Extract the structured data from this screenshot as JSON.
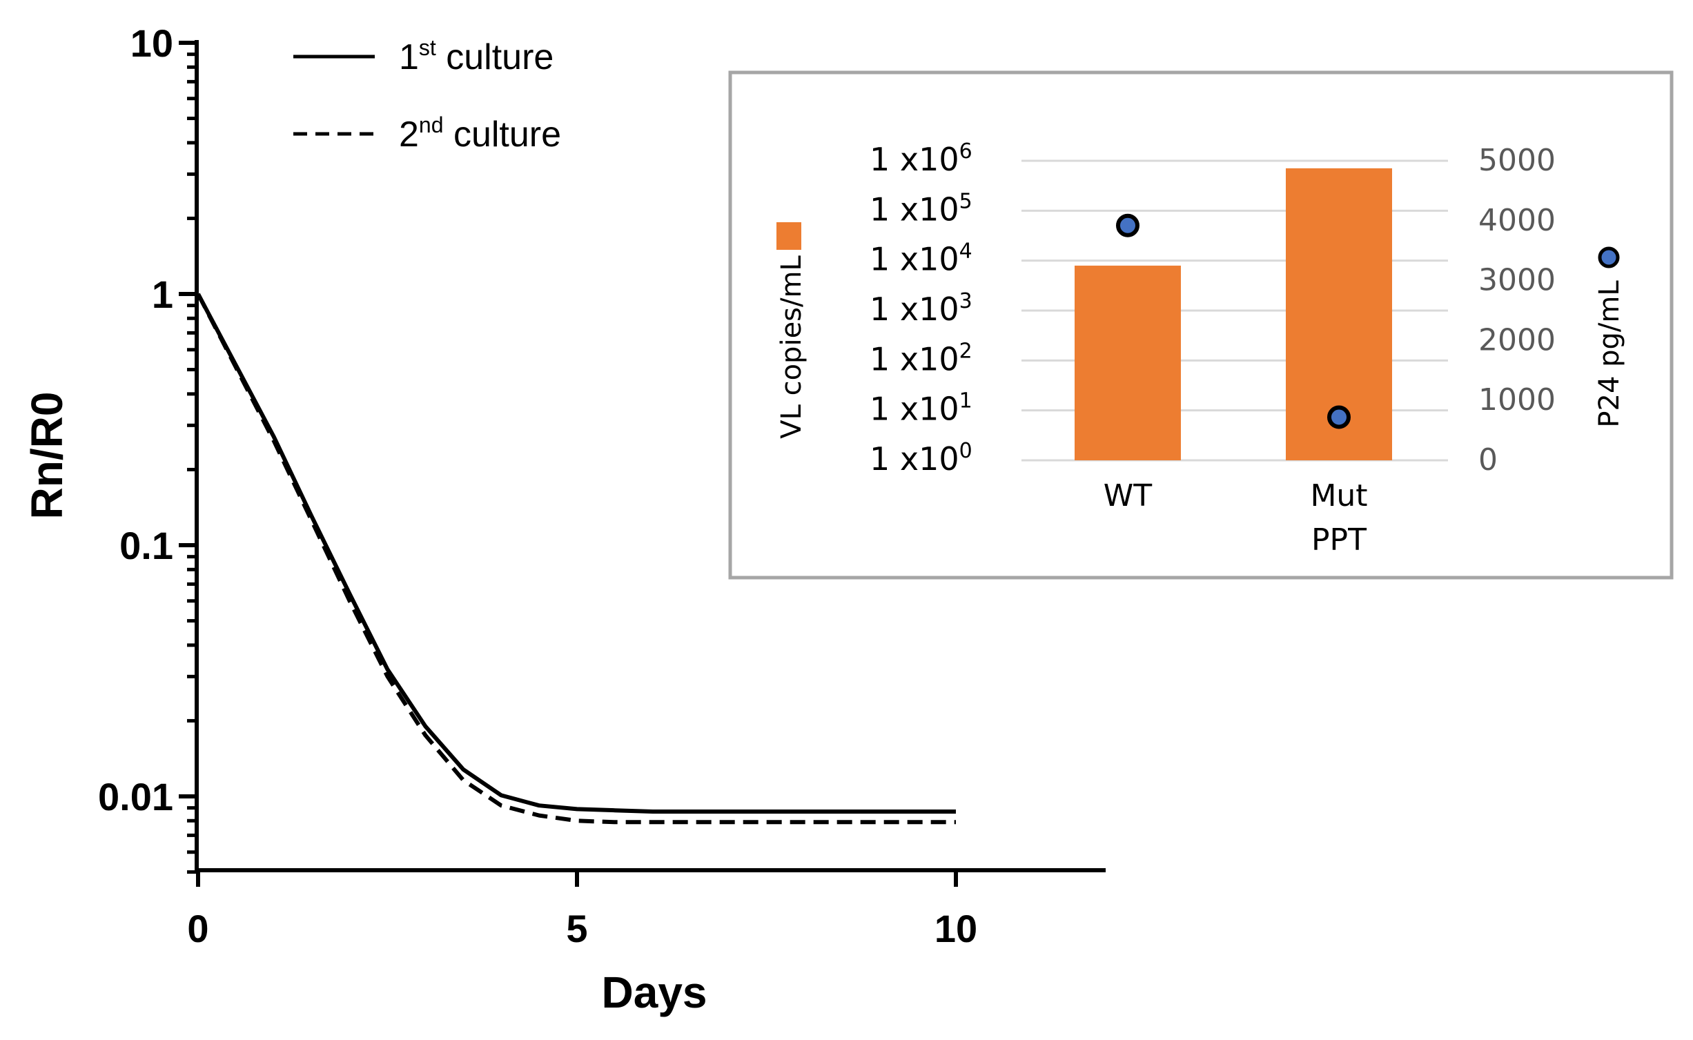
{
  "chart_data": [
    {
      "type": "line",
      "xlabel": "Days",
      "ylabel": "Rn/R0",
      "xlim": [
        0,
        12
      ],
      "ylim": [
        0.005,
        10
      ],
      "yscale": "log",
      "x_ticks": [
        {
          "value": 0,
          "label": "0"
        },
        {
          "value": 5,
          "label": "5"
        },
        {
          "value": 10,
          "label": "10"
        }
      ],
      "y_ticks": [
        {
          "value": 10,
          "label": "10"
        },
        {
          "value": 1,
          "label": "1"
        },
        {
          "value": 0.1,
          "label": "0.1"
        },
        {
          "value": 0.01,
          "label": "0.01"
        }
      ],
      "legend": [
        {
          "base": "1",
          "sup": "st",
          "rest": " culture",
          "style": "solid"
        },
        {
          "base": "2",
          "sup": "nd",
          "rest": " culture",
          "style": "dashed"
        }
      ],
      "legend_position": "top-left",
      "series": [
        {
          "name": "1st culture",
          "style": "solid",
          "x": [
            0,
            0.5,
            1,
            1.5,
            2,
            2.5,
            3,
            3.5,
            4,
            4.5,
            5,
            5.5,
            6,
            7,
            8,
            9,
            10
          ],
          "y": [
            1,
            0.52,
            0.27,
            0.13,
            0.064,
            0.032,
            0.019,
            0.0128,
            0.0101,
            0.0092,
            0.0089,
            0.0088,
            0.0087,
            0.0087,
            0.0087,
            0.0087,
            0.0087
          ]
        },
        {
          "name": "2nd culture",
          "style": "dashed",
          "x": [
            0,
            0.5,
            1,
            1.5,
            2,
            2.5,
            3,
            3.5,
            4,
            4.5,
            5,
            5.5,
            6,
            7,
            8,
            9,
            10
          ],
          "y": [
            1,
            0.51,
            0.26,
            0.125,
            0.06,
            0.03,
            0.0175,
            0.0116,
            0.0092,
            0.0084,
            0.008,
            0.0079,
            0.0079,
            0.0079,
            0.0079,
            0.0079,
            0.0079
          ]
        }
      ]
    },
    {
      "type": "bar",
      "categories": [
        "WT",
        "Mut PPT"
      ],
      "category_lines": [
        [
          "WT"
        ],
        [
          "Mut",
          "PPT"
        ]
      ],
      "left_axis": {
        "label": "VL copies/mL",
        "scale": "log",
        "ticks": [
          {
            "base": "1 x10",
            "exp": "6"
          },
          {
            "base": "1 x10",
            "exp": "5"
          },
          {
            "base": "1 x10",
            "exp": "4"
          },
          {
            "base": "1 x10",
            "exp": "3"
          },
          {
            "base": "1 x10",
            "exp": "2"
          },
          {
            "base": "1 x10",
            "exp": "1"
          },
          {
            "base": "1 x10",
            "exp": "0"
          }
        ]
      },
      "right_axis": {
        "label": "P24 pg/mL",
        "ylim": [
          0,
          5000
        ],
        "ticks": [
          "5000",
          "4000",
          "3000",
          "2000",
          "1000",
          "0"
        ]
      },
      "series": [
        {
          "name": "VL copies/mL",
          "kind": "bar",
          "axis": "left",
          "color": "#ED7D31",
          "log10_values": [
            3.9,
            5.85
          ]
        },
        {
          "name": "P24 pg/mL",
          "kind": "point",
          "axis": "right",
          "color": "#4472C4",
          "values": [
            3920,
            720
          ]
        }
      ]
    }
  ]
}
